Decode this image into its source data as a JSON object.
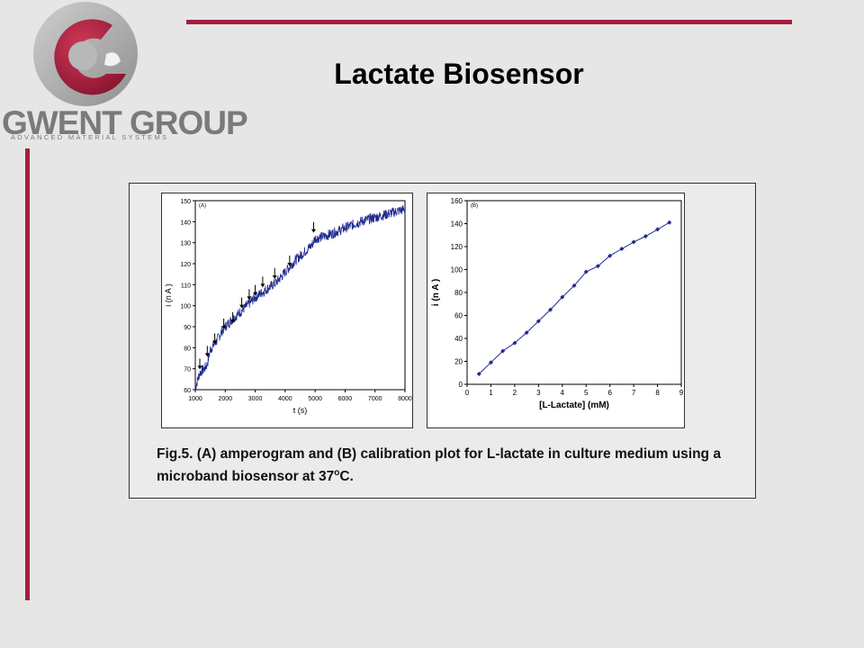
{
  "header": {
    "title": "Lactate Biosensor"
  },
  "logo": {
    "name": "GWENT GROUP",
    "tagline": "ADVANCED MATERIAL SYSTEMS"
  },
  "caption": {
    "text": "Fig.5. (A) amperogram and (B) calibration plot for L-lactate in culture medium using a microband biosensor at 37",
    "superscript": "o",
    "suffix": "C."
  },
  "colors": {
    "accent": "#a51f3c",
    "trace": "#1f2b8f",
    "calib": "#1f2b8f"
  },
  "chart_data": [
    {
      "type": "line",
      "panel_label": "(A)",
      "xlabel": "t (s)",
      "ylabel": "i (n A )",
      "xlim": [
        1000,
        8000
      ],
      "ylim": [
        60,
        150
      ],
      "xticks": [
        1000,
        2000,
        3000,
        4000,
        5000,
        6000,
        7000,
        8000
      ],
      "yticks": [
        60,
        70,
        80,
        90,
        100,
        110,
        120,
        130,
        140,
        150
      ],
      "series": [
        {
          "x": [
            1000,
            1150,
            1300,
            1400,
            1500,
            1700,
            1900,
            2000,
            2200,
            2500,
            2800,
            3000,
            3200,
            3500,
            3700,
            4000,
            4300,
            4600,
            4900,
            5000,
            5300,
            5500,
            6000,
            6500,
            7000,
            7500,
            8000
          ],
          "values": [
            61,
            68,
            70,
            72,
            79,
            83,
            88,
            90,
            93,
            97,
            101,
            104,
            106,
            109,
            111,
            116,
            121,
            125,
            129,
            132,
            133,
            134,
            137,
            140,
            142,
            144,
            146
          ]
        }
      ],
      "annotations": {
        "arrow_x": [
          1150,
          1400,
          1650,
          1950,
          2250,
          2550,
          2800,
          3000,
          3250,
          3650,
          4150,
          4950
        ],
        "arrow_y": [
          68,
          74,
          80,
          87,
          90,
          97,
          101,
          103,
          107,
          111,
          117,
          133
        ]
      }
    },
    {
      "type": "scatter",
      "panel_label": "(B)",
      "xlabel": "[L-Lactate] (mM)",
      "ylabel": "i (n A )",
      "xlim": [
        0,
        9
      ],
      "ylim": [
        0,
        160
      ],
      "xticks": [
        0,
        1,
        2,
        3,
        4,
        5,
        6,
        7,
        8,
        9
      ],
      "yticks": [
        0,
        20,
        40,
        60,
        80,
        100,
        120,
        140,
        160
      ],
      "series": [
        {
          "x": [
            0.5,
            1,
            1.5,
            2,
            2.5,
            3,
            3.5,
            4,
            4.5,
            5,
            5.5,
            6,
            6.5,
            7,
            7.5,
            8,
            8.5
          ],
          "values": [
            9,
            19,
            29,
            36,
            45,
            55,
            65,
            76,
            86,
            98,
            103,
            112,
            118,
            124,
            129,
            135,
            141
          ]
        }
      ]
    }
  ]
}
